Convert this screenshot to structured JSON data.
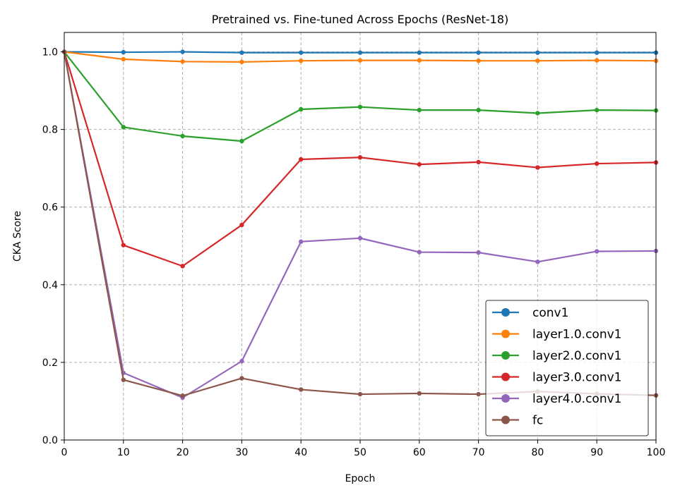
{
  "chart_data": {
    "type": "line",
    "title": "Pretrained vs. Fine-tuned Across Epochs (ResNet-18)",
    "xlabel": "Epoch",
    "ylabel": "CKA Score",
    "xlim": [
      0,
      100
    ],
    "ylim": [
      0,
      1.05
    ],
    "x_ticks": [
      0,
      10,
      20,
      30,
      40,
      50,
      60,
      70,
      80,
      90,
      100
    ],
    "y_ticks": [
      0.0,
      0.2,
      0.4,
      0.6,
      0.8,
      1.0
    ],
    "x_tick_labels": [
      "0",
      "10",
      "20",
      "30",
      "40",
      "50",
      "60",
      "70",
      "80",
      "90",
      "100"
    ],
    "y_tick_labels": [
      "0.0",
      "0.2",
      "0.4",
      "0.6",
      "0.8",
      "1.0"
    ],
    "grid": true,
    "legend_position": "lower-right",
    "x": [
      0,
      10,
      20,
      30,
      40,
      50,
      60,
      70,
      80,
      90,
      100
    ],
    "series": [
      {
        "name": "conv1",
        "color": "#1f77b4",
        "values": [
          1.0,
          0.999,
          1.0,
          0.998,
          0.998,
          0.998,
          0.998,
          0.998,
          0.998,
          0.998,
          0.998
        ]
      },
      {
        "name": "layer1.0.conv1",
        "color": "#ff7f0e",
        "values": [
          1.0,
          0.981,
          0.975,
          0.974,
          0.977,
          0.978,
          0.978,
          0.977,
          0.977,
          0.978,
          0.977
        ]
      },
      {
        "name": "layer2.0.conv1",
        "color": "#2ca02c",
        "values": [
          1.0,
          0.806,
          0.783,
          0.77,
          0.852,
          0.858,
          0.85,
          0.85,
          0.842,
          0.85,
          0.849
        ]
      },
      {
        "name": "layer3.0.conv1",
        "color": "#d62728",
        "values": [
          1.0,
          0.502,
          0.448,
          0.554,
          0.723,
          0.728,
          0.71,
          0.716,
          0.702,
          0.712,
          0.715
        ]
      },
      {
        "name": "layer4.0.conv1",
        "color": "#9467bd",
        "values": [
          1.0,
          0.173,
          0.109,
          0.203,
          0.511,
          0.52,
          0.484,
          0.483,
          0.459,
          0.486,
          0.487
        ]
      },
      {
        "name": "fc",
        "color": "#8c564b",
        "values": [
          1.0,
          0.155,
          0.114,
          0.159,
          0.13,
          0.118,
          0.12,
          0.118,
          0.125,
          0.119,
          0.115
        ]
      }
    ]
  }
}
